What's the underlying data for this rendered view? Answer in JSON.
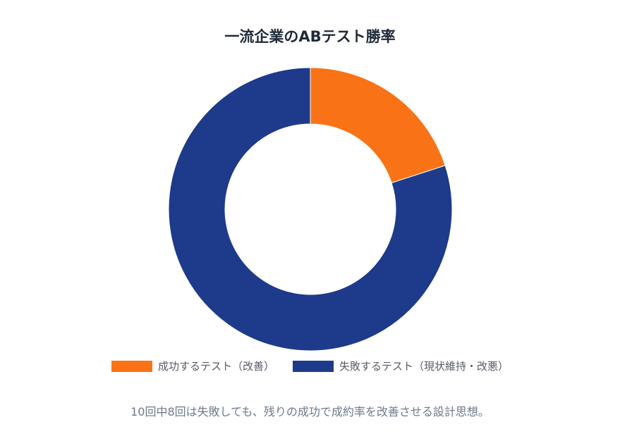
{
  "chart_data": {
    "type": "pie",
    "title": "一流企業のABテスト勝率",
    "categories": [
      "成功するテスト（改善）",
      "失敗するテスト（現状維持・改悪）"
    ],
    "values": [
      2,
      8
    ],
    "colors": [
      "#f97316",
      "#1e3a8a"
    ],
    "donut": true,
    "legend_position": "bottom"
  },
  "caption": "10回中8回は失敗しても、残りの成功で成約率を改善させる設計思想。"
}
